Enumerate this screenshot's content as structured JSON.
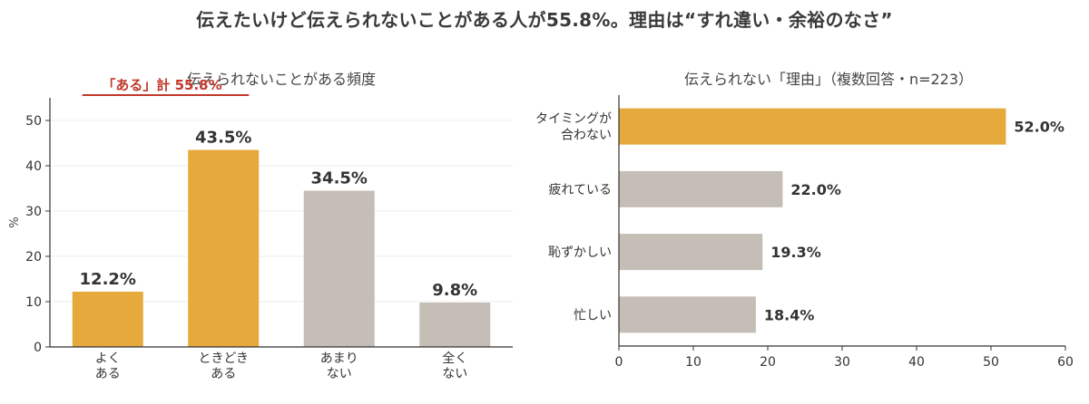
{
  "title": "伝えたいけど伝えられないことがある人が55.8%。理由は“すれ違い・余裕のなさ”",
  "colors": {
    "accent": "#E5A93C",
    "neutral": "#C5BEB7",
    "annotation": "#C0392B",
    "axis": "#333333",
    "grid": "#ECECEC"
  },
  "chart_data": [
    {
      "type": "bar",
      "title": "伝えられないことがある頻度",
      "ylabel": "%",
      "xlabel": "",
      "ylim": [
        0,
        55
      ],
      "yticks": [
        0,
        10,
        20,
        30,
        40,
        50
      ],
      "grid": true,
      "categories": [
        [
          "よく",
          "ある"
        ],
        [
          "ときどき",
          "ある"
        ],
        [
          "あまり",
          "ない"
        ],
        [
          "全く",
          "ない"
        ]
      ],
      "values": [
        12.2,
        43.5,
        34.5,
        9.8
      ],
      "value_labels": [
        "12.2%",
        "43.5%",
        "34.5%",
        "9.8%"
      ],
      "highlight": [
        true,
        true,
        false,
        false
      ],
      "annotation": {
        "text": "「ある」計 55.8%",
        "value": 55.8
      }
    },
    {
      "type": "bar",
      "orientation": "horizontal",
      "title": "伝えられない「理由」（複数回答・n=223）",
      "xlabel": "",
      "ylabel": "",
      "xlim": [
        0,
        60
      ],
      "xticks": [
        0,
        10,
        20,
        30,
        40,
        50,
        60
      ],
      "grid": false,
      "categories": [
        [
          "タイミングが",
          "合わない"
        ],
        [
          "疲れている"
        ],
        [
          "恥ずかしい"
        ],
        [
          "忙しい"
        ]
      ],
      "values": [
        52.0,
        22.0,
        19.3,
        18.4
      ],
      "value_labels": [
        "52.0%",
        "22.0%",
        "19.3%",
        "18.4%"
      ],
      "highlight": [
        true,
        false,
        false,
        false
      ]
    }
  ]
}
